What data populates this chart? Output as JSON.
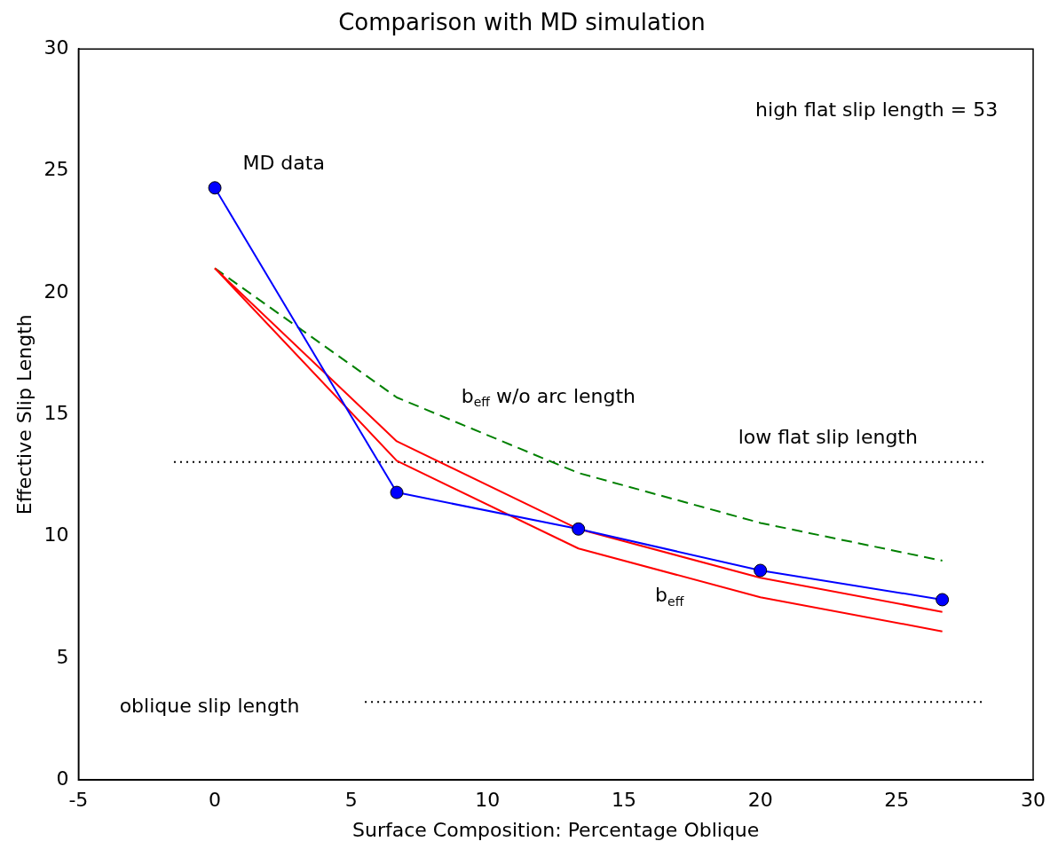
{
  "chart_data": {
    "type": "line",
    "title": "Comparison with MD simulation",
    "xlabel": "Surface Composition: Percentage Oblique",
    "ylabel": "Effective Slip Length",
    "xlim": [
      -5,
      30
    ],
    "ylim": [
      0,
      30
    ],
    "xticks": [
      -5,
      0,
      5,
      10,
      15,
      20,
      25,
      30
    ],
    "yticks": [
      0,
      5,
      10,
      15,
      20,
      25,
      30
    ],
    "grid": false,
    "legend": false,
    "series": [
      {
        "color": "#0000ff",
        "x": [
          0,
          6.67,
          13.33,
          20,
          26.67
        ],
        "values": [
          24.3,
          11.8,
          10.3,
          8.6,
          7.4
        ],
        "marker": "circle",
        "line_style": "solid"
      },
      {
        "color": "#ff0000",
        "x": [
          0,
          6.67,
          13.33,
          20,
          26.67
        ],
        "values": [
          21,
          13.9,
          10.3,
          8.3,
          6.9
        ],
        "marker": "none",
        "line_style": "solid"
      },
      {
        "color": "#ff0000",
        "x": [
          0,
          6.67,
          13.33,
          20,
          26.67
        ],
        "values": [
          21,
          13.1,
          9.5,
          7.5,
          6.1
        ],
        "marker": "none",
        "line_style": "solid"
      },
      {
        "color": "#008000",
        "x": [
          0,
          6.67,
          13.33,
          20,
          26.67
        ],
        "values": [
          21,
          15.7,
          12.6,
          10.55,
          9.0
        ],
        "marker": "none",
        "line_style": "dashed"
      },
      {
        "color": "#000000",
        "x": [
          -1.5,
          28.2
        ],
        "values": [
          13.05,
          13.05
        ],
        "marker": "none",
        "line_style": "dotted"
      },
      {
        "color": "#000000",
        "x": [
          5.5,
          28.2
        ],
        "values": [
          3.2,
          3.2
        ],
        "marker": "none",
        "line_style": "dotted"
      }
    ],
    "annotations": [
      "high flat slip length = 53",
      "MD data",
      "b$_{eff}$ w/o arc length",
      "low flat slip length",
      "oblique slip length",
      "b$_{eff}$"
    ]
  }
}
